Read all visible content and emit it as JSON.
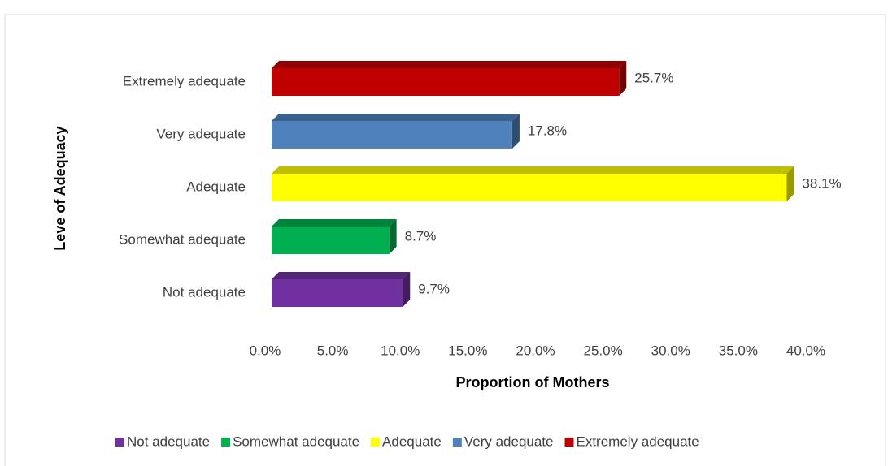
{
  "chart_data": {
    "type": "bar3d_horizontal",
    "y_axis_label": "Leve of Adequacy",
    "x_axis_label": "Proportion of Mothers",
    "categories": [
      "Not adequate",
      "Somewhat adequate",
      "Adequate",
      "Very adequate",
      "Extremely adequate"
    ],
    "colors": [
      "#7030a0",
      "#00b050",
      "#ffff00",
      "#4f81bd",
      "#c00000"
    ],
    "values": [
      9.7,
      8.7,
      38.1,
      17.8,
      25.7
    ],
    "value_labels": [
      "9.7%",
      "8.7%",
      "38.1%",
      "17.8%",
      "25.7%"
    ],
    "xlim": [
      0,
      40
    ],
    "xticks": [
      {
        "value": 0,
        "label": "0.0%"
      },
      {
        "value": 5,
        "label": "5.0%"
      },
      {
        "value": 10,
        "label": "10.0%"
      },
      {
        "value": 15,
        "label": "15.0%"
      },
      {
        "value": 20,
        "label": "20.0%"
      },
      {
        "value": 25,
        "label": "25.0%"
      },
      {
        "value": 30,
        "label": "30.0%"
      },
      {
        "value": 35,
        "label": "35.0%"
      },
      {
        "value": 40,
        "label": "40.0%"
      }
    ],
    "legend": "bottom"
  }
}
